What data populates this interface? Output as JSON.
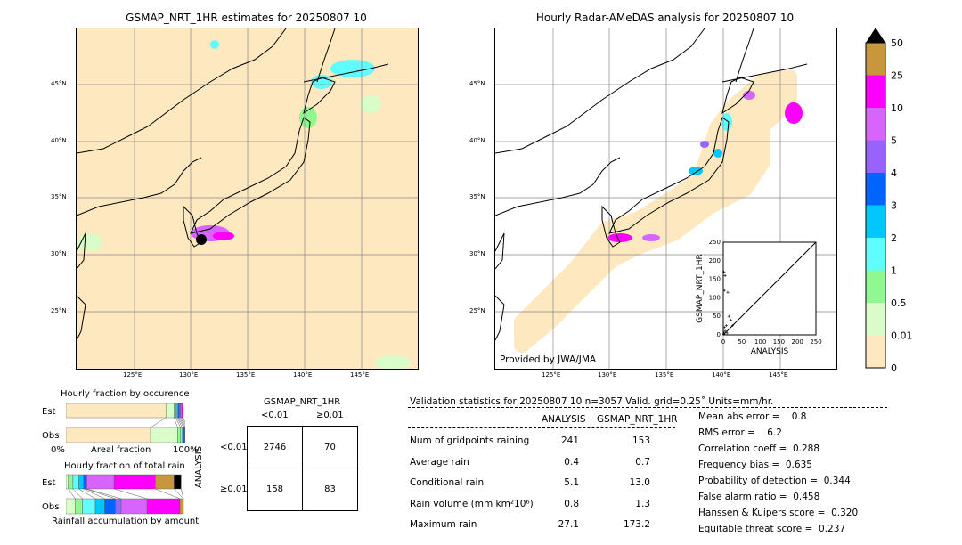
{
  "left_map": {
    "title": "GSMAP_NRT_1HR estimates for 20250807 10"
  },
  "right_map": {
    "title": "Hourly Radar-AMeDAS analysis for 20250807 10",
    "credit": "Provided by JWA/JMA"
  },
  "lon_ticks": [
    "125°E",
    "130°E",
    "135°E",
    "140°E",
    "145°E"
  ],
  "lat_ticks": [
    "45°N",
    "40°N",
    "35°N",
    "30°N",
    "25°N"
  ],
  "colorbar": {
    "labels": [
      "0",
      "0.01",
      "0.5",
      "1",
      "2",
      "3",
      "4",
      "5",
      "10",
      "25",
      "50"
    ],
    "colors": [
      "#fde8c0",
      "#d8fdc8",
      "#90f890",
      "#60fdfd",
      "#00c8fd",
      "#0064fd",
      "#9664fd",
      "#d764fd",
      "#fd00fd",
      "#c8963c"
    ],
    "over_color": "#000000"
  },
  "scatter": {
    "xlabel": "ANALYSIS",
    "ylabel": "GSMAP_NRT_1HR",
    "ticks": [
      "0",
      "50",
      "100",
      "150",
      "200",
      "250"
    ]
  },
  "occurrence": {
    "title": "Hourly fraction by occurence",
    "est_label": "Est",
    "obs_label": "Obs",
    "x0": "0%",
    "xlabel": "Areal fraction",
    "x1": "100%",
    "est": [
      0.85,
      0.07,
      0.015,
      0.01,
      0.01,
      0.01,
      0.01,
      0.01,
      0.01
    ],
    "obs": [
      0.72,
      0.23,
      0.025,
      0.015,
      0.012,
      0.01,
      0.008,
      0.01,
      0.01
    ]
  },
  "total_rain": {
    "title": "Hourly fraction of total rain",
    "est_label": "Est",
    "obs_label": "Obs",
    "xlabel": "Rainfall accumulation by amount",
    "est": [
      0.02,
      0.04,
      0.05,
      0.04,
      0.02,
      0.01,
      0.23,
      0.35,
      0.16,
      0.06
    ],
    "obs": [
      0.08,
      0.06,
      0.11,
      0.08,
      0.09,
      0.05,
      0.22,
      0.28,
      0.03,
      0.0
    ]
  },
  "contingency": {
    "title": "GSMAP_NRT_1HR",
    "col1": "<0.01",
    "col2": "≥0.01",
    "ylabel": "ANALYSIS",
    "row1": "<0.01",
    "row2": "≥0.01",
    "cells": [
      "2746",
      "70",
      "158",
      "83"
    ]
  },
  "stats": {
    "header": "Validation statistics for 20250807 10  n=3057 Valid. grid=0.25˚ Units=mm/hr.",
    "col_analysis": "ANALYSIS",
    "col_gsmap": "GSMAP_NRT_1HR",
    "rows": [
      {
        "label": "Num of gridpoints raining",
        "a": "241",
        "g": "153"
      },
      {
        "label": "Average rain",
        "a": "0.4",
        "g": "0.7"
      },
      {
        "label": "Conditional rain",
        "a": "5.1",
        "g": "13.0"
      },
      {
        "label": "Rain volume (mm km²10⁶)",
        "a": "0.8",
        "g": "1.3"
      },
      {
        "label": "Maximum rain",
        "a": "27.1",
        "g": "173.2"
      }
    ],
    "scores": [
      "Mean abs error =    0.8",
      "RMS error =    6.2",
      "Correlation coeff =  0.288",
      "Frequency bias =  0.635",
      "Probability of detection =  0.344",
      "False alarm ratio =  0.458",
      "Hanssen & Kuipers score =  0.320",
      "Equitable threat score =  0.237"
    ]
  }
}
